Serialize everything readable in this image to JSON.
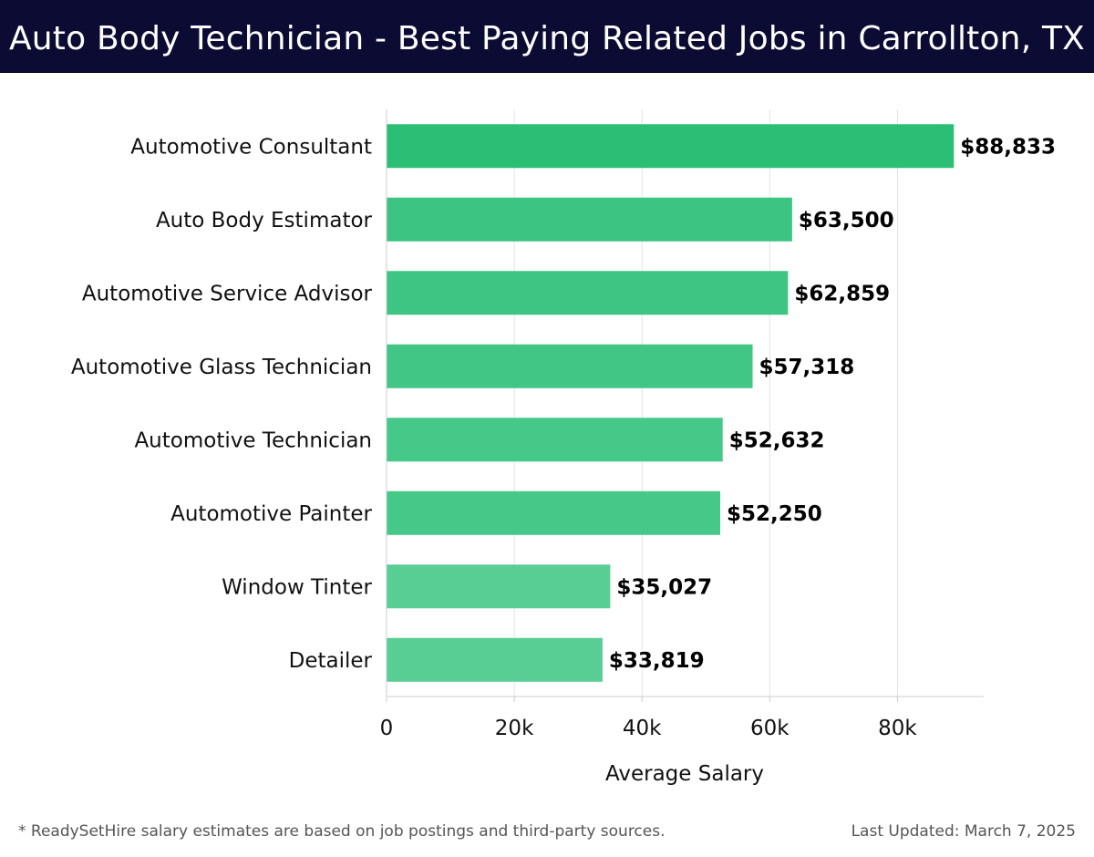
{
  "header": {
    "title": "Auto Body Technician - Best Paying Related Jobs in Carrollton, TX"
  },
  "chart_data": {
    "type": "bar",
    "orientation": "horizontal",
    "categories": [
      "Automotive Consultant",
      "Auto Body Estimator",
      "Automotive Service Advisor",
      "Automotive Glass Technician",
      "Automotive Technician",
      "Automotive Painter",
      "Window Tinter",
      "Detailer"
    ],
    "values": [
      88833,
      63500,
      62859,
      57318,
      52632,
      52250,
      35027,
      33819
    ],
    "data_labels": [
      "$88,833",
      "$63,500",
      "$62,859",
      "$57,318",
      "$52,632",
      "$52,250",
      "$35,027",
      "$33,819"
    ],
    "xlabel": "Average Salary",
    "ylabel": "",
    "xlim": [
      0,
      93500
    ],
    "x_ticks": [
      0,
      20000,
      40000,
      60000,
      80000
    ],
    "x_tick_labels": [
      "0",
      "20k",
      "40k",
      "60k",
      "80k"
    ],
    "grid": "vertical",
    "bar_colors": [
      "#2bbf76",
      "#3cc482",
      "#3ec583",
      "#42c686",
      "#46c889",
      "#46c889",
      "#58cd94",
      "#58cd94"
    ]
  },
  "footer": {
    "note": "* ReadySetHire salary estimates are based on job postings and third-party sources.",
    "updated": "Last Updated: March 7, 2025"
  }
}
